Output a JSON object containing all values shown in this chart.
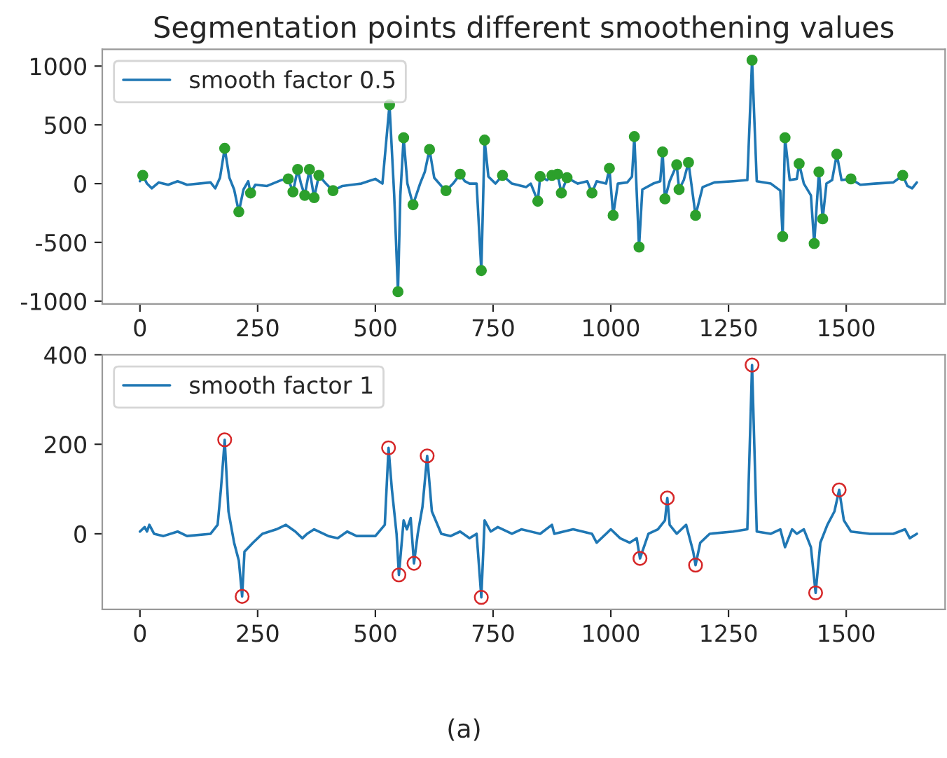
{
  "chart_data": [
    {
      "type": "line",
      "title": "Segmentation points different smoothening values",
      "legend": "top left",
      "grid": false,
      "xlim": [
        -80,
        1710
      ],
      "xticks": [
        0,
        250,
        500,
        750,
        1000,
        1250,
        1500
      ],
      "ylim": [
        -1024,
        1143
      ],
      "yticks": [
        -1000,
        -500,
        0,
        500,
        1000
      ],
      "series": [
        {
          "name": "smooth factor 0.5",
          "color": "#1f77b4",
          "marker": "none",
          "x": [
            0,
            6,
            15,
            25,
            40,
            60,
            80,
            100,
            150,
            160,
            170,
            180,
            190,
            200,
            210,
            220,
            230,
            235,
            245,
            270,
            300,
            315,
            325,
            335,
            342,
            350,
            360,
            370,
            380,
            395,
            410,
            430,
            470,
            500,
            515,
            530,
            540,
            548,
            553,
            560,
            568,
            580,
            595,
            605,
            615,
            625,
            640,
            650,
            665,
            680,
            690,
            700,
            715,
            725,
            732,
            740,
            755,
            770,
            790,
            820,
            830,
            845,
            850,
            865,
            875,
            887,
            895,
            907,
            930,
            950,
            960,
            970,
            990,
            997,
            1005,
            1015,
            1035,
            1045,
            1050,
            1060,
            1067,
            1090,
            1105,
            1110,
            1115,
            1125,
            1140,
            1145,
            1155,
            1165,
            1180,
            1195,
            1220,
            1260,
            1290,
            1300,
            1310,
            1340,
            1360,
            1365,
            1370,
            1380,
            1395,
            1400,
            1410,
            1425,
            1432,
            1442,
            1450,
            1458,
            1470,
            1480,
            1490,
            1510,
            1530,
            1560,
            1600,
            1620,
            1630,
            1640,
            1650
          ],
          "values": [
            20,
            70,
            0,
            -40,
            10,
            -10,
            20,
            -10,
            10,
            -40,
            50,
            300,
            50,
            -50,
            -240,
            -50,
            20,
            -80,
            -10,
            -20,
            30,
            40,
            -70,
            120,
            0,
            -100,
            120,
            -120,
            70,
            0,
            -60,
            -20,
            0,
            40,
            0,
            670,
            -100,
            -920,
            -100,
            390,
            0,
            -180,
            0,
            100,
            290,
            50,
            -20,
            -60,
            0,
            80,
            20,
            0,
            0,
            -740,
            370,
            60,
            0,
            70,
            0,
            -30,
            0,
            -150,
            60,
            30,
            70,
            80,
            -80,
            50,
            0,
            20,
            -80,
            20,
            0,
            130,
            -270,
            0,
            10,
            60,
            400,
            -540,
            -50,
            0,
            20,
            270,
            -130,
            20,
            160,
            -50,
            30,
            180,
            -270,
            -30,
            10,
            20,
            30,
            1050,
            20,
            0,
            -60,
            -450,
            390,
            30,
            40,
            170,
            0,
            -100,
            -510,
            100,
            -300,
            0,
            30,
            250,
            30,
            40,
            -10,
            0,
            10,
            70,
            -20,
            -40,
            10
          ]
        },
        {
          "type": "scatter",
          "color": "#2ca02c",
          "marker": "circle",
          "x": [
            6,
            180,
            210,
            235,
            315,
            325,
            335,
            350,
            360,
            370,
            380,
            410,
            530,
            548,
            560,
            580,
            615,
            650,
            680,
            725,
            732,
            770,
            845,
            850,
            875,
            887,
            895,
            907,
            960,
            997,
            1005,
            1050,
            1060,
            1110,
            1115,
            1140,
            1145,
            1165,
            1180,
            1300,
            1365,
            1370,
            1400,
            1432,
            1442,
            1450,
            1480,
            1510,
            1620
          ],
          "values": [
            70,
            300,
            -240,
            -80,
            40,
            -70,
            120,
            -100,
            120,
            -120,
            70,
            -60,
            670,
            -920,
            390,
            -180,
            290,
            -60,
            80,
            -740,
            370,
            70,
            -150,
            60,
            70,
            80,
            -80,
            50,
            -80,
            130,
            -270,
            400,
            -540,
            270,
            -130,
            160,
            -50,
            180,
            -270,
            1050,
            -450,
            390,
            170,
            -510,
            100,
            -300,
            250,
            40,
            70
          ]
        }
      ]
    },
    {
      "type": "line",
      "legend": "top left",
      "grid": false,
      "annotations": [
        "(a)"
      ],
      "xlim": [
        -80,
        1710
      ],
      "xticks": [
        0,
        250,
        500,
        750,
        1000,
        1250,
        1500
      ],
      "ylim": [
        -169,
        400
      ],
      "yticks": [
        0,
        200,
        400
      ],
      "series": [
        {
          "name": "smooth factor 1",
          "color": "#1f77b4",
          "marker": "none",
          "x": [
            0,
            10,
            15,
            20,
            30,
            50,
            80,
            100,
            150,
            165,
            172,
            180,
            188,
            200,
            210,
            217,
            222,
            240,
            260,
            290,
            310,
            330,
            345,
            355,
            370,
            400,
            420,
            440,
            460,
            500,
            520,
            528,
            535,
            545,
            550,
            560,
            567,
            575,
            582,
            590,
            600,
            610,
            620,
            640,
            660,
            680,
            700,
            715,
            725,
            732,
            745,
            760,
            790,
            810,
            850,
            875,
            880,
            920,
            960,
            970,
            990,
            1000,
            1020,
            1040,
            1055,
            1062,
            1080,
            1100,
            1115,
            1120,
            1125,
            1140,
            1150,
            1160,
            1175,
            1180,
            1190,
            1210,
            1260,
            1290,
            1300,
            1310,
            1340,
            1360,
            1370,
            1385,
            1395,
            1410,
            1425,
            1435,
            1445,
            1460,
            1475,
            1485,
            1495,
            1510,
            1550,
            1600,
            1625,
            1635,
            1650
          ],
          "values": [
            5,
            15,
            5,
            20,
            0,
            -5,
            5,
            -5,
            0,
            20,
            100,
            210,
            50,
            -20,
            -60,
            -140,
            -40,
            -20,
            0,
            10,
            20,
            5,
            -10,
            0,
            10,
            -5,
            -10,
            5,
            -5,
            -5,
            20,
            192,
            100,
            0,
            -92,
            30,
            10,
            35,
            -66,
            0,
            60,
            174,
            50,
            0,
            -5,
            5,
            -10,
            0,
            -142,
            30,
            5,
            15,
            0,
            10,
            0,
            20,
            0,
            10,
            0,
            -20,
            0,
            10,
            -10,
            -20,
            -10,
            -55,
            0,
            10,
            30,
            80,
            20,
            0,
            10,
            20,
            -40,
            -70,
            -20,
            0,
            5,
            10,
            377,
            5,
            0,
            10,
            -30,
            10,
            0,
            10,
            -30,
            -132,
            -20,
            20,
            50,
            98,
            30,
            5,
            0,
            0,
            10,
            -10,
            0
          ]
        },
        {
          "type": "scatter",
          "color": "#d62728",
          "marker": "open_circle",
          "x": [
            180,
            217,
            528,
            550,
            582,
            610,
            725,
            1062,
            1120,
            1180,
            1300,
            1435,
            1485
          ],
          "values": [
            210,
            -140,
            192,
            -92,
            -66,
            174,
            -142,
            -55,
            80,
            -70,
            377,
            -132,
            98
          ]
        }
      ]
    }
  ]
}
